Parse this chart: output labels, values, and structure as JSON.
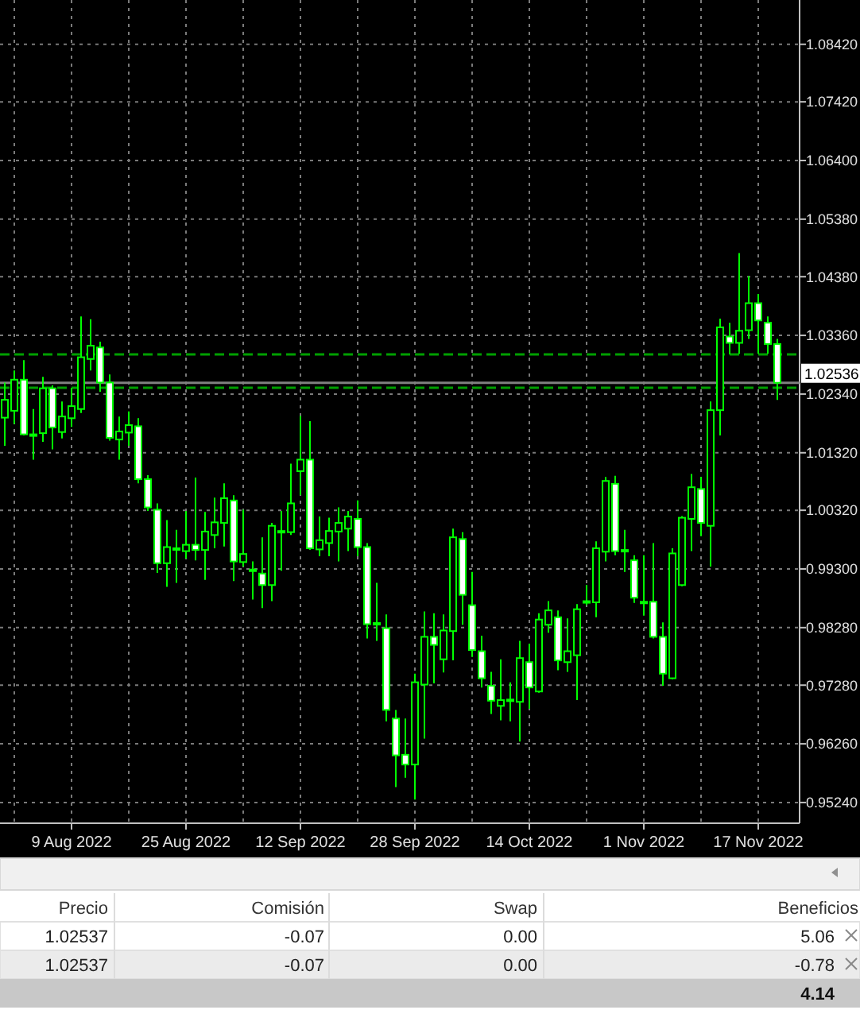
{
  "chart_data": [
    {
      "type": "candlestick",
      "color": "#00ff00",
      "grid": true,
      "categories": [
        null,
        null,
        null,
        null,
        null,
        null,
        null,
        "9 Aug 2022",
        null,
        null,
        null,
        null,
        null,
        null,
        null,
        null,
        null,
        null,
        null,
        "25 Aug 2022",
        null,
        null,
        null,
        null,
        null,
        null,
        null,
        null,
        null,
        null,
        null,
        "12 Sep 2022",
        null,
        null,
        null,
        null,
        null,
        null,
        null,
        null,
        null,
        null,
        null,
        "28 Sep 2022",
        null,
        null,
        null,
        null,
        null,
        null,
        null,
        null,
        null,
        null,
        null,
        "14 Oct 2022",
        null,
        null,
        null,
        null,
        null,
        null,
        null,
        null,
        null,
        null,
        null,
        "1 Nov 2022",
        null,
        null,
        null,
        null,
        null,
        null,
        null,
        null,
        null,
        null,
        null,
        "17 Nov 2022",
        null,
        null
      ],
      "ohlc": [
        [
          1.0193,
          1.0254,
          1.0144,
          1.0224
        ],
        [
          1.0205,
          1.0275,
          1.0182,
          1.0259
        ],
        [
          1.0259,
          1.0293,
          1.0162,
          1.0164
        ],
        [
          1.0164,
          1.0208,
          1.012,
          1.0163
        ],
        [
          1.0166,
          1.0264,
          1.0151,
          1.0244
        ],
        [
          1.0244,
          1.0249,
          1.0138,
          1.0176
        ],
        [
          1.0168,
          1.0221,
          1.0157,
          1.0195
        ],
        [
          1.0192,
          1.0245,
          1.0177,
          1.0213
        ],
        [
          1.0208,
          1.0369,
          1.0201,
          1.0298
        ],
        [
          1.0295,
          1.0364,
          1.0275,
          1.0318
        ],
        [
          1.0315,
          1.0325,
          1.0238,
          1.0254
        ],
        [
          1.0254,
          1.0268,
          1.0153,
          1.0158
        ],
        [
          1.0155,
          1.0195,
          1.012,
          1.0169
        ],
        [
          1.0167,
          1.0204,
          1.0144,
          1.018
        ],
        [
          1.0178,
          1.0192,
          1.0079,
          1.0086
        ],
        [
          1.0086,
          1.0093,
          1.0031,
          1.0037
        ],
        [
          1.0033,
          1.0044,
          0.9923,
          0.994
        ],
        [
          0.994,
          1.0015,
          0.9899,
          0.9968
        ],
        [
          0.9965,
          0.9998,
          0.9906,
          0.9966
        ],
        [
          0.9961,
          1.0031,
          0.9948,
          0.9972
        ],
        [
          0.9972,
          1.0089,
          0.9945,
          0.9963
        ],
        [
          0.9963,
          1.0029,
          0.9911,
          0.9995
        ],
        [
          0.9989,
          1.0054,
          0.9966,
          1.0011
        ],
        [
          1.001,
          1.0079,
          0.9969,
          1.0053
        ],
        [
          1.0049,
          1.0058,
          0.9909,
          0.9943
        ],
        [
          0.9942,
          1.0033,
          0.9934,
          0.9956
        ],
        [
          0.9928,
          0.9943,
          0.9877,
          0.9929
        ],
        [
          0.9922,
          0.9985,
          0.9862,
          0.9902
        ],
        [
          0.9902,
          1.001,
          0.9874,
          1.0005
        ],
        [
          0.9996,
          1.0031,
          0.9927,
          0.9995
        ],
        [
          0.9994,
          1.0113,
          0.9989,
          1.0044
        ],
        [
          1.01,
          1.0196,
          1.0058,
          1.012
        ],
        [
          1.012,
          1.0187,
          0.9963,
          0.9966
        ],
        [
          0.9964,
          1.0021,
          0.9952,
          0.998
        ],
        [
          0.9975,
          1.0019,
          0.9952,
          0.9996
        ],
        [
          0.9995,
          1.0037,
          0.9943,
          1.001
        ],
        [
          1.0,
          1.0031,
          0.9961,
          1.0021
        ],
        [
          1.0017,
          1.0049,
          0.9952,
          0.9968
        ],
        [
          0.9968,
          0.9975,
          0.9809,
          0.9834
        ],
        [
          0.9836,
          0.9906,
          0.9805,
          0.9835
        ],
        [
          0.9827,
          0.9851,
          0.9665,
          0.9685
        ],
        [
          0.967,
          0.9685,
          0.9551,
          0.9606
        ],
        [
          0.9607,
          0.967,
          0.9567,
          0.959
        ],
        [
          0.959,
          0.9748,
          0.9529,
          0.9733
        ],
        [
          0.9729,
          0.9856,
          0.9635,
          0.9812
        ],
        [
          0.9812,
          0.9853,
          0.9731,
          0.9798
        ],
        [
          0.9773,
          0.9851,
          0.975,
          0.9823
        ],
        [
          0.9822,
          1.0,
          0.9771,
          0.9985
        ],
        [
          0.9982,
          0.9994,
          0.9833,
          0.9885
        ],
        [
          0.9867,
          0.9925,
          0.9777,
          0.9789
        ],
        [
          0.9787,
          0.9814,
          0.9724,
          0.974
        ],
        [
          0.9727,
          0.9751,
          0.9678,
          0.9701
        ],
        [
          0.9692,
          0.9773,
          0.9667,
          0.9702
        ],
        [
          0.9702,
          0.9733,
          0.9665,
          0.9703
        ],
        [
          0.9699,
          0.9805,
          0.963,
          0.9775
        ],
        [
          0.9768,
          0.98,
          0.9687,
          0.9724
        ],
        [
          0.9717,
          0.9853,
          0.9715,
          0.9842
        ],
        [
          0.9833,
          0.9874,
          0.9819,
          0.9858
        ],
        [
          0.9846,
          0.9858,
          0.9754,
          0.9771
        ],
        [
          0.9768,
          0.9844,
          0.9751,
          0.9787
        ],
        [
          0.978,
          0.9869,
          0.9702,
          0.986
        ],
        [
          0.9873,
          0.9902,
          0.9867,
          0.9874
        ],
        [
          0.9872,
          0.9978,
          0.9846,
          0.9966
        ],
        [
          0.996,
          1.009,
          0.9943,
          1.0083
        ],
        [
          1.0078,
          1.0092,
          0.9954,
          0.9961
        ],
        [
          0.9963,
          0.9998,
          0.9925,
          0.9962
        ],
        [
          0.9945,
          0.9954,
          0.9871,
          0.988
        ],
        [
          0.9873,
          0.9954,
          0.9849,
          0.9872
        ],
        [
          0.9873,
          0.9975,
          0.9809,
          0.9812
        ],
        [
          0.9812,
          0.9837,
          0.9727,
          0.9748
        ],
        [
          0.974,
          0.9966,
          0.9738,
          0.9957
        ],
        [
          0.9902,
          1.0022,
          0.99,
          1.0019
        ],
        [
          1.0017,
          1.0095,
          0.9961,
          1.0072
        ],
        [
          1.0069,
          1.009,
          0.9987,
          1.001
        ],
        [
          1.0005,
          1.0221,
          0.9934,
          1.0206
        ],
        [
          1.0206,
          1.0365,
          1.0162,
          1.035
        ],
        [
          1.0334,
          1.0358,
          1.0303,
          1.0323
        ],
        [
          1.0323,
          1.0479,
          1.0304,
          1.0344
        ],
        [
          1.0345,
          1.0439,
          1.033,
          1.0392
        ],
        [
          1.0392,
          1.0408,
          1.0304,
          1.0362
        ],
        [
          1.0358,
          1.0369,
          1.0304,
          1.0321
        ],
        [
          1.0321,
          1.033,
          1.0224,
          1.02536
        ]
      ],
      "ylim": [
        0.9488,
        1.0919
      ],
      "yticks": [
        {
          "value": 0.9524,
          "label": "0.95240"
        },
        {
          "value": 0.9626,
          "label": "0.96260"
        },
        {
          "value": 0.9728,
          "label": "0.97280"
        },
        {
          "value": 0.9828,
          "label": "0.98280"
        },
        {
          "value": 0.993,
          "label": "0.99300"
        },
        {
          "value": 1.0032,
          "label": "1.00320"
        },
        {
          "value": 1.0132,
          "label": "1.01320"
        },
        {
          "value": 1.0234,
          "label": "1.02340"
        },
        {
          "value": 1.0336,
          "label": "1.03360"
        },
        {
          "value": 1.0438,
          "label": "1.04380"
        },
        {
          "value": 1.0538,
          "label": "1.05380"
        },
        {
          "value": 1.064,
          "label": "1.06400"
        },
        {
          "value": 1.0742,
          "label": "1.07420"
        },
        {
          "value": 1.0842,
          "label": "1.08420"
        }
      ],
      "ref_lines": [
        {
          "axis": "y",
          "value": 1.0303,
          "line_style": "dashed",
          "color": "#00a000"
        },
        {
          "axis": "y",
          "value": 1.0245,
          "line_style": "dashed",
          "color": "#00a000"
        },
        {
          "axis": "y",
          "value": 1.02536,
          "label": "1.02536",
          "line_style": "solid",
          "color": "#808080"
        }
      ]
    },
    {
      "type": "other",
      "categories": [
        "Precio",
        "Comisión",
        "Swap",
        "Beneficios"
      ],
      "cell_labels": [
        [
          "1.02537",
          "-0.07",
          "0.00",
          "5.06"
        ],
        [
          "1.02537",
          "-0.07",
          "0.00",
          "-0.78"
        ]
      ],
      "totals": [
        "4.14"
      ]
    }
  ]
}
